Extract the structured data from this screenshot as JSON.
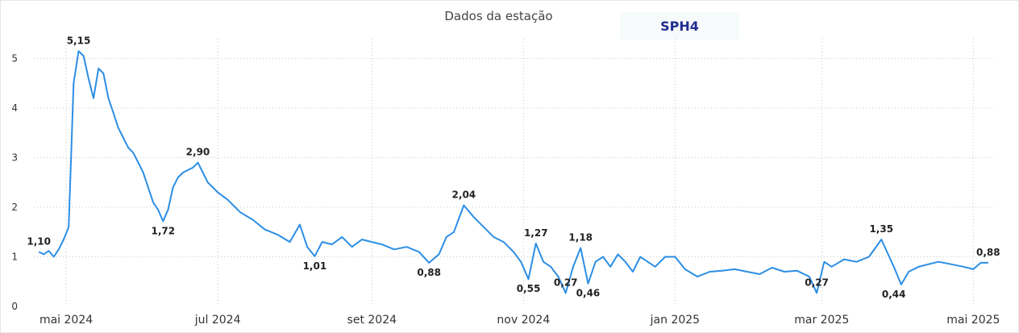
{
  "header": {
    "title": "Dados da estação",
    "station": "SPH4"
  },
  "chart_data": {
    "type": "line",
    "title": "Dados da estação",
    "xlabel": "",
    "ylabel": "",
    "ylim": [
      0,
      5.4
    ],
    "yticks": [
      0,
      1,
      2,
      3,
      4,
      5
    ],
    "xlim": [
      "2024-04-18",
      "2025-05-09"
    ],
    "xticks": [
      {
        "date": "2024-05-01",
        "label": "mai 2024"
      },
      {
        "date": "2024-07-01",
        "label": "jul 2024"
      },
      {
        "date": "2024-09-01",
        "label": "set 2024"
      },
      {
        "date": "2024-11-01",
        "label": "nov 2024"
      },
      {
        "date": "2025-01-01",
        "label": "jan 2025"
      },
      {
        "date": "2025-03-01",
        "label": "mar 2025"
      },
      {
        "date": "2025-05-01",
        "label": "mai 2025"
      }
    ],
    "grid": true,
    "color": "#2c8ee5",
    "series": [
      {
        "name": "",
        "x": [
          "2024-04-20",
          "2024-04-22",
          "2024-04-24",
          "2024-04-26",
          "2024-04-28",
          "2024-04-30",
          "2024-05-02",
          "2024-05-04",
          "2024-05-06",
          "2024-05-08",
          "2024-05-10",
          "2024-05-12",
          "2024-05-14",
          "2024-05-16",
          "2024-05-18",
          "2024-05-20",
          "2024-05-22",
          "2024-05-24",
          "2024-05-26",
          "2024-05-28",
          "2024-05-30",
          "2024-06-01",
          "2024-06-03",
          "2024-06-05",
          "2024-06-07",
          "2024-06-09",
          "2024-06-11",
          "2024-06-13",
          "2024-06-15",
          "2024-06-17",
          "2024-06-19",
          "2024-06-21",
          "2024-06-23",
          "2024-06-25",
          "2024-06-27",
          "2024-06-29",
          "2024-07-01",
          "2024-07-05",
          "2024-07-10",
          "2024-07-15",
          "2024-07-20",
          "2024-07-25",
          "2024-07-30",
          "2024-08-03",
          "2024-08-06",
          "2024-08-09",
          "2024-08-12",
          "2024-08-16",
          "2024-08-20",
          "2024-08-24",
          "2024-08-28",
          "2024-09-01",
          "2024-09-05",
          "2024-09-10",
          "2024-09-15",
          "2024-09-20",
          "2024-09-24",
          "2024-09-28",
          "2024-10-01",
          "2024-10-04",
          "2024-10-08",
          "2024-10-12",
          "2024-10-16",
          "2024-10-20",
          "2024-10-24",
          "2024-10-28",
          "2024-10-31",
          "2024-11-03",
          "2024-11-06",
          "2024-11-09",
          "2024-11-12",
          "2024-11-15",
          "2024-11-18",
          "2024-11-21",
          "2024-11-24",
          "2024-11-27",
          "2024-11-30",
          "2024-12-03",
          "2024-12-06",
          "2024-12-09",
          "2024-12-12",
          "2024-12-15",
          "2024-12-18",
          "2024-12-21",
          "2024-12-24",
          "2024-12-28",
          "2025-01-01",
          "2025-01-05",
          "2025-01-10",
          "2025-01-15",
          "2025-01-20",
          "2025-01-25",
          "2025-01-30",
          "2025-02-04",
          "2025-02-09",
          "2025-02-14",
          "2025-02-19",
          "2025-02-24",
          "2025-02-27",
          "2025-03-02",
          "2025-03-05",
          "2025-03-10",
          "2025-03-15",
          "2025-03-20",
          "2025-03-25",
          "2025-03-30",
          "2025-04-02",
          "2025-04-05",
          "2025-04-09",
          "2025-04-13",
          "2025-04-17",
          "2025-04-22",
          "2025-04-27",
          "2025-05-01",
          "2025-05-04",
          "2025-05-07"
        ],
        "y": [
          1.1,
          1.05,
          1.12,
          1.0,
          1.15,
          1.35,
          1.6,
          4.5,
          5.15,
          5.05,
          4.6,
          4.2,
          4.8,
          4.7,
          4.2,
          3.9,
          3.6,
          3.4,
          3.2,
          3.1,
          2.9,
          2.7,
          2.4,
          2.1,
          1.95,
          1.72,
          1.95,
          2.4,
          2.6,
          2.7,
          2.75,
          2.8,
          2.9,
          2.7,
          2.5,
          2.4,
          2.3,
          2.15,
          1.9,
          1.75,
          1.55,
          1.45,
          1.3,
          1.65,
          1.2,
          1.01,
          1.3,
          1.25,
          1.4,
          1.2,
          1.35,
          1.3,
          1.25,
          1.15,
          1.2,
          1.1,
          0.88,
          1.05,
          1.4,
          1.5,
          2.04,
          1.8,
          1.6,
          1.4,
          1.3,
          1.1,
          0.9,
          0.55,
          1.27,
          0.9,
          0.8,
          0.6,
          0.27,
          0.8,
          1.18,
          0.46,
          0.9,
          1.0,
          0.8,
          1.05,
          0.9,
          0.7,
          1.0,
          0.9,
          0.8,
          1.0,
          1.0,
          0.75,
          0.6,
          0.7,
          0.72,
          0.75,
          0.7,
          0.65,
          0.78,
          0.7,
          0.72,
          0.6,
          0.27,
          0.9,
          0.8,
          0.95,
          0.9,
          1.0,
          1.35,
          0.8,
          0.44,
          0.7,
          0.8,
          0.85,
          0.9,
          0.85,
          0.8,
          0.75,
          0.88,
          0.88
        ]
      }
    ],
    "data_labels": [
      {
        "date": "2024-04-20",
        "value": 1.1,
        "text": "1,10",
        "pos": "above"
      },
      {
        "date": "2024-05-06",
        "value": 5.15,
        "text": "5,15",
        "pos": "above"
      },
      {
        "date": "2024-06-09",
        "value": 1.72,
        "text": "1,72",
        "pos": "below"
      },
      {
        "date": "2024-06-23",
        "value": 2.9,
        "text": "2,90",
        "pos": "above"
      },
      {
        "date": "2024-08-09",
        "value": 1.01,
        "text": "1,01",
        "pos": "below"
      },
      {
        "date": "2024-09-24",
        "value": 0.88,
        "text": "0,88",
        "pos": "below"
      },
      {
        "date": "2024-10-08",
        "value": 2.04,
        "text": "2,04",
        "pos": "above"
      },
      {
        "date": "2024-11-03",
        "value": 0.55,
        "text": "0,55",
        "pos": "below"
      },
      {
        "date": "2024-11-06",
        "value": 1.27,
        "text": "1,27",
        "pos": "above"
      },
      {
        "date": "2024-11-18",
        "value": 0.27,
        "text": "0,27",
        "pos": "above"
      },
      {
        "date": "2024-11-24",
        "value": 1.18,
        "text": "1,18",
        "pos": "above"
      },
      {
        "date": "2024-11-27",
        "value": 0.46,
        "text": "0,46",
        "pos": "below"
      },
      {
        "date": "2025-02-27",
        "value": 0.27,
        "text": "0,27",
        "pos": "above"
      },
      {
        "date": "2025-03-25",
        "value": 1.35,
        "text": "1,35",
        "pos": "above"
      },
      {
        "date": "2025-03-30",
        "value": 0.44,
        "text": "0,44",
        "pos": "below"
      },
      {
        "date": "2025-05-07",
        "value": 0.88,
        "text": "0,88",
        "pos": "above"
      }
    ]
  }
}
